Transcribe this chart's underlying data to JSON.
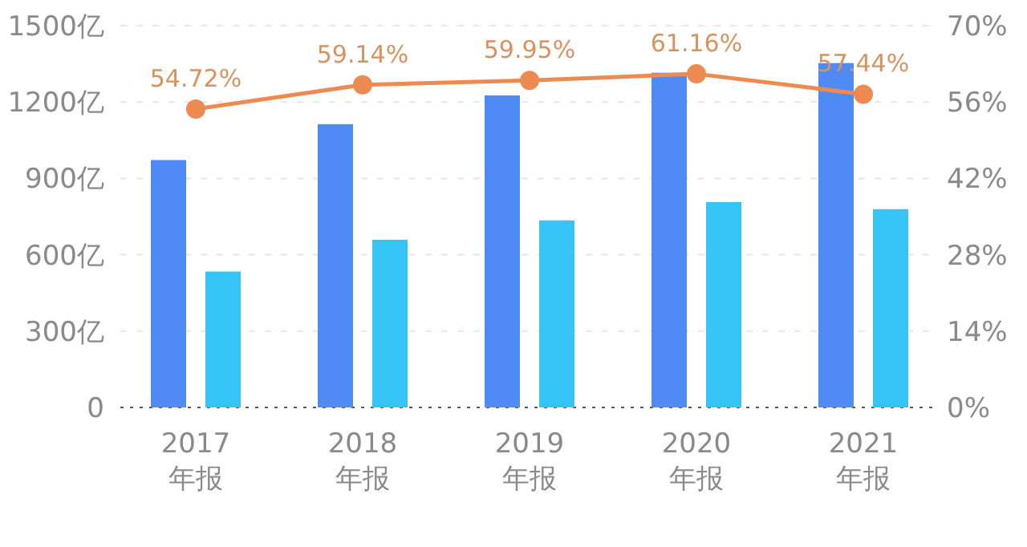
{
  "chart_data": {
    "type": "bar",
    "categories": [
      "2017\n年报",
      "2018\n年报",
      "2019\n年报",
      "2020\n年报",
      "2021\n年报"
    ],
    "series": [
      {
        "color": "#4f8af5",
        "values": [
          972,
          1113,
          1226,
          1315,
          1353
        ]
      },
      {
        "color": "#35c4f5",
        "values": [
          534,
          659,
          735,
          807,
          779
        ]
      },
      {
        "type": "line",
        "axis": "y2",
        "color": "#ec8a4f",
        "values": [
          54.72,
          59.14,
          59.95,
          61.16,
          57.44
        ],
        "value_labels": [
          "54.72%",
          "59.14%",
          "59.95%",
          "61.16%",
          "57.44%"
        ]
      }
    ],
    "ylim": [
      0,
      1500
    ],
    "yticks": [
      0,
      {
        "value": 300,
        "label": "300亿"
      },
      {
        "value": 600,
        "label": "600亿"
      },
      {
        "value": 900,
        "label": "900亿"
      },
      {
        "value": 1200,
        "label": "1200亿"
      },
      {
        "value": 1500,
        "label": "1500亿"
      }
    ],
    "y2lim": [
      0,
      70
    ],
    "y2ticks": [
      {
        "value": 0,
        "label": "0%"
      },
      {
        "value": 14,
        "label": "14%"
      },
      {
        "value": 28,
        "label": "28%"
      },
      {
        "value": 42,
        "label": "42%"
      },
      {
        "value": 56,
        "label": "56%"
      },
      {
        "value": 70,
        "label": "70%"
      }
    ],
    "grid": "y",
    "marker": "circle"
  }
}
